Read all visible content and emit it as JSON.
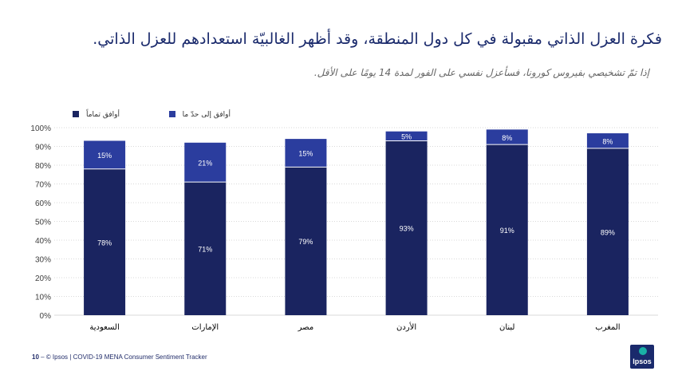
{
  "header": {
    "title": "فكرة العزل الذاتي مقبولة في كل دول المنطقة، وقد أظهر الغالبيّة استعدادهم للعزل الذاتي.",
    "subtitle": "إذا تمّ تشخيصي بفيروس كورونا، فسأعزل نفسي على الفور لمدة 14 يومًا على الأقل."
  },
  "footer": {
    "page": "10",
    "separator": " – ",
    "text": "© Ipsos | COVID-19 MENA Consumer Sentiment Tracker"
  },
  "logo": {
    "text": "Ipsos"
  },
  "colors": {
    "strongly_agree": "#1a2460",
    "somewhat_agree": "#2b3d9e",
    "grid": "#d9d9d9",
    "axis_text": "#404040"
  },
  "chart_data": {
    "type": "bar",
    "stacked": true,
    "categories": [
      "السعودية",
      "الإمارات",
      "مصر",
      "الأردن",
      "لبنان",
      "المغرب"
    ],
    "series": [
      {
        "name": "أوافق تماماً",
        "values": [
          78,
          71,
          79,
          93,
          91,
          89
        ]
      },
      {
        "name": "أوافق إلى حدّ ما",
        "values": [
          15,
          21,
          15,
          5,
          8,
          8
        ]
      }
    ],
    "y_ticks": [
      "0%",
      "10%",
      "20%",
      "30%",
      "40%",
      "50%",
      "60%",
      "70%",
      "80%",
      "90%",
      "100%"
    ],
    "ylim": [
      0,
      100
    ],
    "legend_position": "top-left",
    "grid": true
  }
}
